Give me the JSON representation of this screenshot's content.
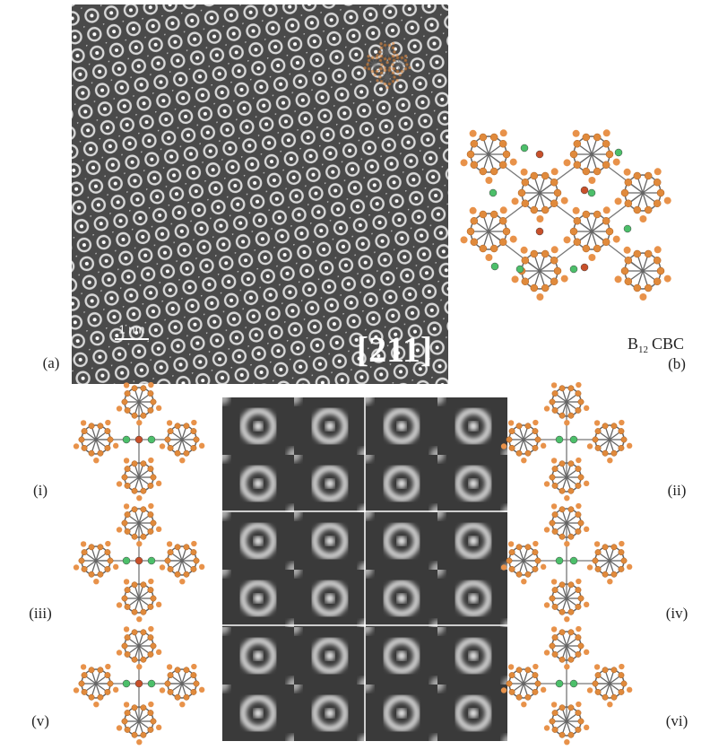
{
  "panel_a": {
    "label": "(a)",
    "scale_bar": "1 nm",
    "direction": "[211]"
  },
  "panel_b": {
    "label": "(b)",
    "formula": {
      "base": "B",
      "subscript": "12",
      "suffix": "CBC"
    }
  },
  "models": [
    {
      "label": "(i)"
    },
    {
      "label": "(ii)"
    },
    {
      "label": "(iii)"
    },
    {
      "label": "(iv)"
    },
    {
      "label": "(v)"
    },
    {
      "label": "(vi)"
    }
  ]
}
